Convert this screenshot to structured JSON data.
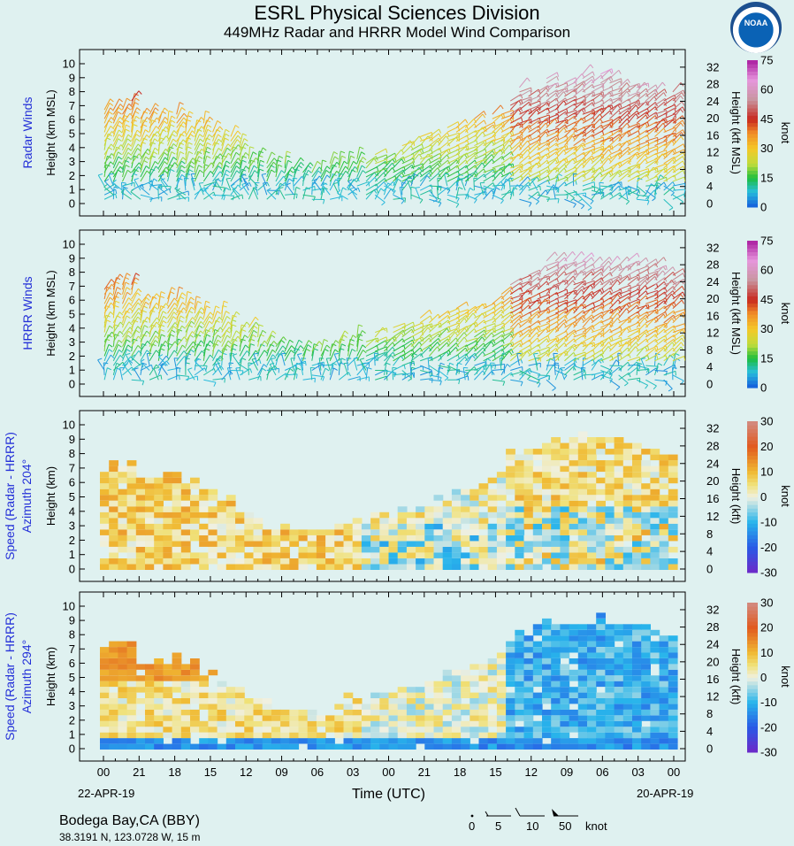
{
  "header": {
    "title": "ESRL Physical Sciences Division",
    "subtitle": "449MHz Radar and HRRR Model Wind Comparison",
    "logo_text": "NOAA"
  },
  "x_axis": {
    "label": "Time (UTC)",
    "ticks": [
      "00",
      "21",
      "18",
      "15",
      "12",
      "09",
      "06",
      "03",
      "00",
      "21",
      "18",
      "15",
      "12",
      "09",
      "06",
      "03",
      "00"
    ],
    "start_date": "22-APR-19",
    "end_date": "20-APR-19"
  },
  "station": {
    "name": "Bodega Bay,CA (BBY)",
    "location": "38.3191 N, 123.0728 W, 15 m"
  },
  "barb_legend": {
    "labels": [
      "0",
      "5",
      "10",
      "50"
    ],
    "unit": "knot"
  },
  "chart_data": [
    {
      "type": "heatmap",
      "panel": "radar-winds",
      "side_label": "Radar Winds",
      "ylabel": "Height (km MSL)",
      "y2label": "Height (kft MSL)",
      "yticks": [
        "0",
        "1",
        "2",
        "3",
        "4",
        "5",
        "6",
        "7",
        "8",
        "9",
        "10"
      ],
      "y2ticks": [
        "0",
        "4",
        "8",
        "12",
        "16",
        "20",
        "24",
        "28",
        "32"
      ],
      "ylim": [
        0,
        10.5
      ],
      "colorbar": {
        "label": "knot",
        "ticks": [
          "0",
          "15",
          "30",
          "45",
          "60",
          "75"
        ],
        "range": [
          0,
          75
        ]
      },
      "shape": "wind barbs"
    },
    {
      "type": "heatmap",
      "panel": "hrrr-winds",
      "side_label": "HRRR Winds",
      "ylabel": "Height (km MSL)",
      "y2label": "Height (kft MSL)",
      "yticks": [
        "0",
        "1",
        "2",
        "3",
        "4",
        "5",
        "6",
        "7",
        "8",
        "9",
        "10"
      ],
      "y2ticks": [
        "0",
        "4",
        "8",
        "12",
        "16",
        "20",
        "24",
        "28",
        "32"
      ],
      "ylim": [
        0,
        10.5
      ],
      "colorbar": {
        "label": "knot",
        "ticks": [
          "0",
          "15",
          "30",
          "45",
          "60",
          "75"
        ],
        "range": [
          0,
          75
        ]
      },
      "shape": "wind barbs"
    },
    {
      "type": "heatmap",
      "panel": "speed-diff-204",
      "side_label": "Speed (Radar - HRRR)",
      "side_label2": "Azimuth 204°",
      "ylabel": "Height (km)",
      "y2label": "Height (kft)",
      "yticks": [
        "0",
        "1",
        "2",
        "3",
        "4",
        "5",
        "6",
        "7",
        "8",
        "9",
        "10"
      ],
      "y2ticks": [
        "0",
        "4",
        "8",
        "12",
        "16",
        "20",
        "24",
        "28",
        "32"
      ],
      "ylim": [
        0,
        10.5
      ],
      "colorbar": {
        "label": "knot",
        "ticks": [
          "-30",
          "-20",
          "-10",
          "0",
          "10",
          "20",
          "30"
        ],
        "range": [
          -30,
          30
        ]
      }
    },
    {
      "type": "heatmap",
      "panel": "speed-diff-294",
      "side_label": "Speed (Radar - HRRR)",
      "side_label2": "Azimuth 294°",
      "ylabel": "Height (km)",
      "y2label": "Height (kft)",
      "yticks": [
        "0",
        "1",
        "2",
        "3",
        "4",
        "5",
        "6",
        "7",
        "8",
        "9",
        "10"
      ],
      "y2ticks": [
        "0",
        "4",
        "8",
        "12",
        "16",
        "20",
        "24",
        "28",
        "32"
      ],
      "ylim": [
        0,
        10.5
      ],
      "colorbar": {
        "label": "knot",
        "ticks": [
          "-30",
          "-20",
          "-10",
          "0",
          "10",
          "20",
          "30"
        ],
        "range": [
          -30,
          30
        ]
      }
    }
  ]
}
